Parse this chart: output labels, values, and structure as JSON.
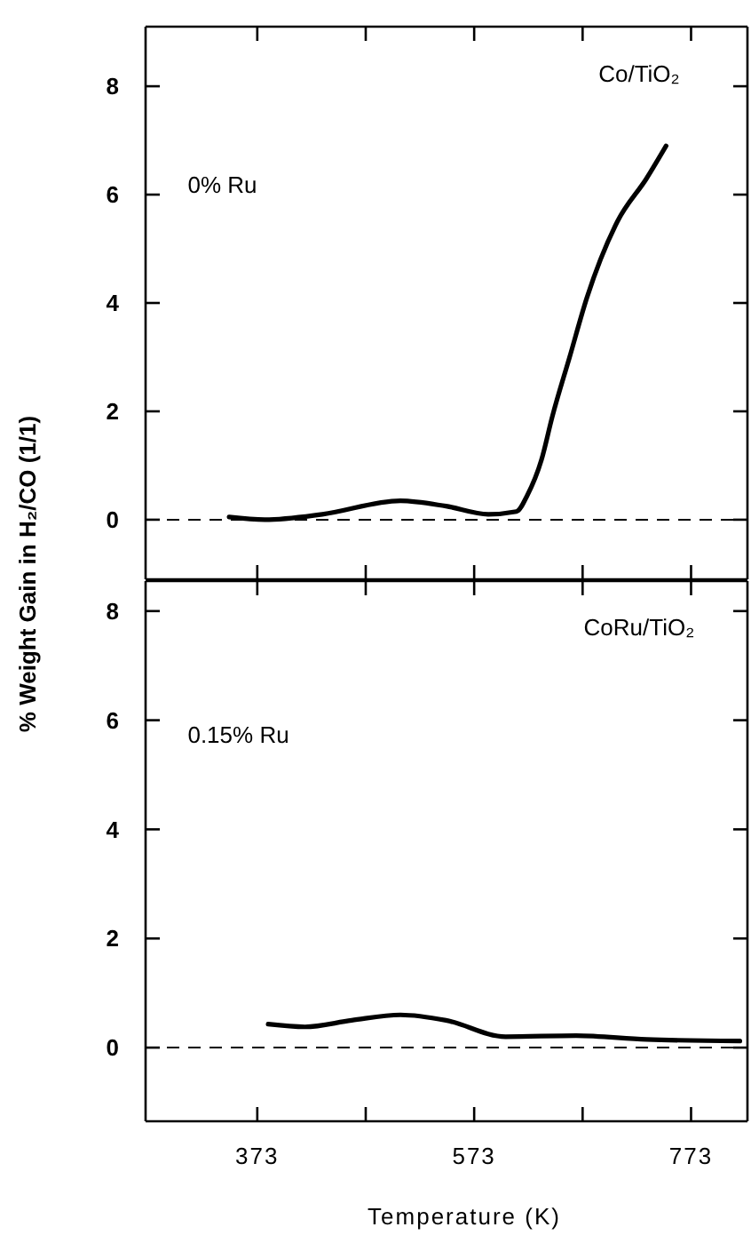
{
  "chart_data": [
    {
      "type": "line",
      "annotations": [
        "Co/TiO₂",
        "0% Ru"
      ],
      "x": [
        347,
        380,
        433,
        505,
        547,
        586,
        612,
        622,
        635,
        645,
        661,
        677,
        705,
        732,
        750
      ],
      "series": [
        {
          "color": "#000000",
          "values": [
            0.05,
            0.0,
            0.1,
            0.35,
            0.25,
            0.1,
            0.15,
            0.45,
            1.1,
            1.9,
            3.0,
            4.1,
            5.5,
            6.3,
            6.9
          ]
        }
      ],
      "xlim": [
        270,
        825
      ],
      "ylim": [
        -1.1,
        9.1
      ],
      "xticks": [
        {
          "value": 373,
          "label": null
        },
        {
          "value": 473,
          "label": null
        },
        {
          "value": 573,
          "label": null
        },
        {
          "value": 673,
          "label": null
        },
        {
          "value": 773,
          "label": null
        }
      ],
      "yticks": [
        0,
        2,
        4,
        6,
        8
      ],
      "tick_labels": "y",
      "ref_lines": [
        {
          "axis": "y",
          "value": 0,
          "line_style": "dashed"
        }
      ],
      "line_style": "solid"
    },
    {
      "type": "line",
      "xlabel": "Temperature (K)",
      "ylabel": "% Weight Gain in H₂/CO (1/1)",
      "annotations": [
        "CoRu/TiO₂",
        "0.15% Ru"
      ],
      "x": [
        383,
        417,
        460,
        505,
        547,
        602,
        667,
        732,
        818
      ],
      "series": [
        {
          "color": "#000000",
          "values": [
            0.43,
            0.38,
            0.5,
            0.6,
            0.5,
            0.2,
            0.22,
            0.15,
            0.12
          ]
        }
      ],
      "xlim": [
        270,
        825
      ],
      "ylim": [
        -1.35,
        8.55
      ],
      "xticks": [
        373,
        {
          "value": 473,
          "label": null
        },
        573,
        {
          "value": 673,
          "label": null
        },
        773
      ],
      "yticks": [
        0,
        2,
        4,
        6,
        8
      ],
      "ref_lines": [
        {
          "axis": "y",
          "value": 0,
          "line_style": "dashed"
        }
      ],
      "line_style": "solid"
    }
  ]
}
